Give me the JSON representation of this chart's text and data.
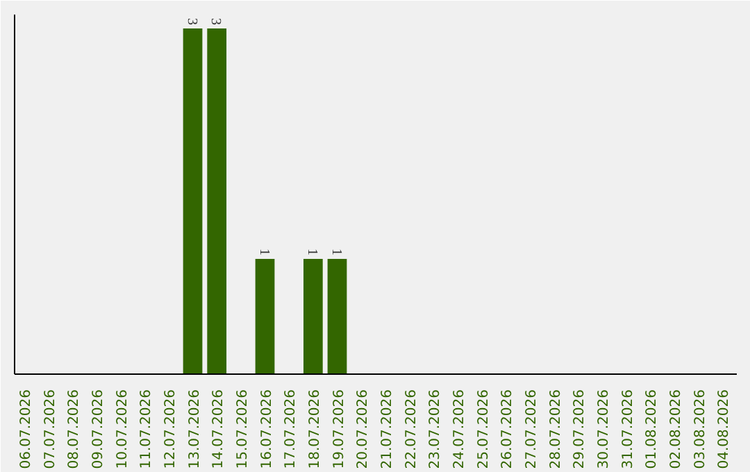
{
  "chart_data": {
    "type": "bar",
    "categories": [
      "06.07.2026",
      "07.07.2026",
      "08.07.2026",
      "09.07.2026",
      "10.07.2026",
      "11.07.2026",
      "12.07.2026",
      "13.07.2026",
      "14.07.2026",
      "15.07.2026",
      "16.07.2026",
      "17.07.2026",
      "18.07.2026",
      "19.07.2026",
      "20.07.2026",
      "21.07.2026",
      "22.07.2026",
      "23.07.2026",
      "24.07.2026",
      "25.07.2026",
      "26.07.2026",
      "27.07.2026",
      "28.07.2026",
      "29.07.2026",
      "30.07.2026",
      "31.07.2026",
      "01.08.2026",
      "02.08.2026",
      "03.08.2026",
      "04.08.2026"
    ],
    "values": [
      0,
      0,
      0,
      0,
      0,
      0,
      0,
      3,
      3,
      0,
      1,
      0,
      1,
      1,
      0,
      0,
      0,
      0,
      0,
      0,
      0,
      0,
      0,
      0,
      0,
      0,
      0,
      0,
      0,
      0
    ],
    "value_labels": [
      null,
      null,
      null,
      null,
      null,
      null,
      null,
      "3",
      "3",
      null,
      "1",
      null,
      "1",
      "1",
      null,
      null,
      null,
      null,
      null,
      null,
      null,
      null,
      null,
      null,
      null,
      null,
      null,
      null,
      null,
      null
    ],
    "color": "#336600",
    "relative": false,
    "grid": false
  }
}
